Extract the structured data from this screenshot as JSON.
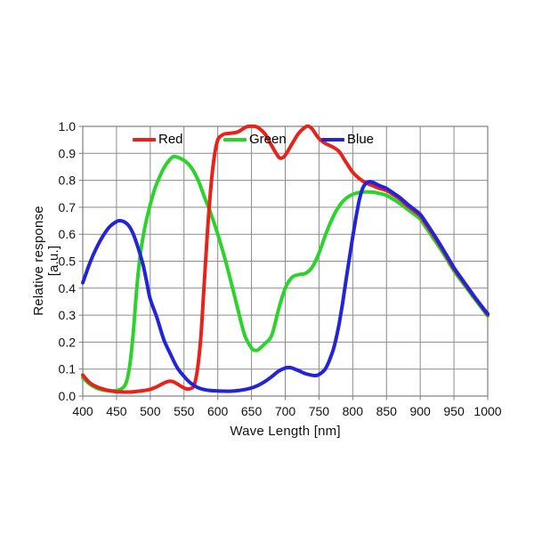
{
  "chart_data": {
    "type": "line",
    "title": "",
    "xlabel": "Wave Length [nm]",
    "ylabel": "Relative response [a.u.]",
    "xlim": [
      400,
      1000
    ],
    "ylim": [
      0.0,
      1.0
    ],
    "x_ticks": [
      400,
      450,
      500,
      550,
      600,
      650,
      700,
      750,
      800,
      850,
      900,
      950,
      1000
    ],
    "x_tick_labels": [
      "400",
      "450",
      "500",
      "550",
      "600",
      "650",
      "700",
      "750",
      "800",
      "850",
      "900",
      "950",
      "1000"
    ],
    "y_ticks": [
      0.0,
      0.1,
      0.2,
      0.3,
      0.4,
      0.5,
      0.6,
      0.7,
      0.8,
      0.9,
      1.0
    ],
    "y_tick_labels": [
      "0.0",
      "0.1",
      "0.2",
      "0.3",
      "0.4",
      "0.5",
      "0.6",
      "0.7",
      "0.8",
      "0.9",
      "1.0"
    ],
    "grid": true,
    "legend_position": "top-inside",
    "colors": {
      "grid": "#8c8c8c",
      "frame": "#7f7f7f",
      "text": "#111111"
    },
    "series": [
      {
        "name": "Red",
        "color": "#e8211a",
        "points": [
          [
            400,
            0.078
          ],
          [
            410,
            0.05
          ],
          [
            420,
            0.035
          ],
          [
            430,
            0.026
          ],
          [
            440,
            0.02
          ],
          [
            450,
            0.016
          ],
          [
            460,
            0.015
          ],
          [
            470,
            0.015
          ],
          [
            480,
            0.017
          ],
          [
            490,
            0.02
          ],
          [
            500,
            0.025
          ],
          [
            510,
            0.035
          ],
          [
            520,
            0.048
          ],
          [
            525,
            0.053
          ],
          [
            530,
            0.055
          ],
          [
            535,
            0.052
          ],
          [
            540,
            0.045
          ],
          [
            550,
            0.03
          ],
          [
            555,
            0.026
          ],
          [
            560,
            0.028
          ],
          [
            565,
            0.04
          ],
          [
            570,
            0.1
          ],
          [
            575,
            0.22
          ],
          [
            580,
            0.42
          ],
          [
            585,
            0.62
          ],
          [
            590,
            0.78
          ],
          [
            595,
            0.89
          ],
          [
            600,
            0.95
          ],
          [
            605,
            0.965
          ],
          [
            610,
            0.972
          ],
          [
            620,
            0.975
          ],
          [
            630,
            0.98
          ],
          [
            640,
            0.995
          ],
          [
            645,
            1.0
          ],
          [
            655,
            1.0
          ],
          [
            660,
            0.995
          ],
          [
            670,
            0.972
          ],
          [
            680,
            0.928
          ],
          [
            690,
            0.887
          ],
          [
            695,
            0.883
          ],
          [
            700,
            0.893
          ],
          [
            710,
            0.935
          ],
          [
            720,
            0.975
          ],
          [
            730,
            0.998
          ],
          [
            735,
            1.0
          ],
          [
            740,
            0.99
          ],
          [
            750,
            0.955
          ],
          [
            760,
            0.936
          ],
          [
            770,
            0.924
          ],
          [
            780,
            0.906
          ],
          [
            790,
            0.867
          ],
          [
            800,
            0.83
          ],
          [
            810,
            0.806
          ],
          [
            820,
            0.79
          ],
          [
            830,
            0.78
          ],
          [
            840,
            0.77
          ],
          [
            850,
            0.762
          ],
          [
            860,
            0.747
          ],
          [
            870,
            0.73
          ],
          [
            880,
            0.708
          ],
          [
            890,
            0.688
          ],
          [
            900,
            0.668
          ],
          [
            910,
            0.632
          ],
          [
            920,
            0.594
          ],
          [
            930,
            0.556
          ],
          [
            940,
            0.514
          ],
          [
            950,
            0.472
          ],
          [
            960,
            0.437
          ],
          [
            970,
            0.402
          ],
          [
            980,
            0.368
          ],
          [
            990,
            0.335
          ],
          [
            1000,
            0.302
          ]
        ]
      },
      {
        "name": "Green",
        "color": "#2bd32b",
        "points": [
          [
            400,
            0.068
          ],
          [
            410,
            0.045
          ],
          [
            420,
            0.03
          ],
          [
            430,
            0.022
          ],
          [
            440,
            0.019
          ],
          [
            450,
            0.02
          ],
          [
            455,
            0.024
          ],
          [
            460,
            0.032
          ],
          [
            465,
            0.055
          ],
          [
            470,
            0.12
          ],
          [
            475,
            0.24
          ],
          [
            480,
            0.4
          ],
          [
            485,
            0.52
          ],
          [
            490,
            0.6
          ],
          [
            495,
            0.66
          ],
          [
            500,
            0.71
          ],
          [
            505,
            0.755
          ],
          [
            510,
            0.79
          ],
          [
            520,
            0.845
          ],
          [
            530,
            0.88
          ],
          [
            535,
            0.888
          ],
          [
            540,
            0.886
          ],
          [
            550,
            0.874
          ],
          [
            560,
            0.85
          ],
          [
            570,
            0.806
          ],
          [
            580,
            0.74
          ],
          [
            590,
            0.675
          ],
          [
            600,
            0.6
          ],
          [
            610,
            0.515
          ],
          [
            620,
            0.42
          ],
          [
            630,
            0.32
          ],
          [
            640,
            0.225
          ],
          [
            650,
            0.178
          ],
          [
            655,
            0.17
          ],
          [
            660,
            0.172
          ],
          [
            670,
            0.195
          ],
          [
            680,
            0.225
          ],
          [
            690,
            0.32
          ],
          [
            700,
            0.4
          ],
          [
            710,
            0.44
          ],
          [
            720,
            0.45
          ],
          [
            730,
            0.455
          ],
          [
            740,
            0.478
          ],
          [
            750,
            0.53
          ],
          [
            760,
            0.6
          ],
          [
            770,
            0.66
          ],
          [
            780,
            0.705
          ],
          [
            790,
            0.733
          ],
          [
            800,
            0.748
          ],
          [
            810,
            0.755
          ],
          [
            820,
            0.757
          ],
          [
            830,
            0.756
          ],
          [
            840,
            0.751
          ],
          [
            850,
            0.744
          ],
          [
            860,
            0.73
          ],
          [
            870,
            0.714
          ],
          [
            880,
            0.695
          ],
          [
            890,
            0.676
          ],
          [
            900,
            0.656
          ],
          [
            910,
            0.62
          ],
          [
            920,
            0.583
          ],
          [
            930,
            0.546
          ],
          [
            940,
            0.505
          ],
          [
            950,
            0.464
          ],
          [
            960,
            0.43
          ],
          [
            970,
            0.396
          ],
          [
            980,
            0.363
          ],
          [
            990,
            0.33
          ],
          [
            1000,
            0.297
          ]
        ]
      },
      {
        "name": "Blue",
        "color": "#2323d9",
        "points": [
          [
            400,
            0.42
          ],
          [
            410,
            0.49
          ],
          [
            420,
            0.548
          ],
          [
            430,
            0.594
          ],
          [
            440,
            0.628
          ],
          [
            450,
            0.647
          ],
          [
            455,
            0.65
          ],
          [
            460,
            0.648
          ],
          [
            465,
            0.64
          ],
          [
            470,
            0.625
          ],
          [
            475,
            0.6
          ],
          [
            480,
            0.565
          ],
          [
            485,
            0.525
          ],
          [
            490,
            0.48
          ],
          [
            495,
            0.42
          ],
          [
            500,
            0.36
          ],
          [
            510,
            0.29
          ],
          [
            520,
            0.21
          ],
          [
            530,
            0.155
          ],
          [
            540,
            0.105
          ],
          [
            550,
            0.073
          ],
          [
            560,
            0.048
          ],
          [
            570,
            0.032
          ],
          [
            580,
            0.024
          ],
          [
            590,
            0.02
          ],
          [
            600,
            0.019
          ],
          [
            610,
            0.018
          ],
          [
            620,
            0.018
          ],
          [
            630,
            0.02
          ],
          [
            640,
            0.024
          ],
          [
            650,
            0.03
          ],
          [
            660,
            0.04
          ],
          [
            670,
            0.054
          ],
          [
            680,
            0.072
          ],
          [
            690,
            0.092
          ],
          [
            700,
            0.104
          ],
          [
            705,
            0.106
          ],
          [
            710,
            0.104
          ],
          [
            720,
            0.094
          ],
          [
            730,
            0.083
          ],
          [
            740,
            0.077
          ],
          [
            745,
            0.076
          ],
          [
            750,
            0.08
          ],
          [
            760,
            0.103
          ],
          [
            770,
            0.163
          ],
          [
            775,
            0.21
          ],
          [
            780,
            0.27
          ],
          [
            785,
            0.345
          ],
          [
            790,
            0.43
          ],
          [
            795,
            0.51
          ],
          [
            800,
            0.59
          ],
          [
            805,
            0.665
          ],
          [
            810,
            0.73
          ],
          [
            815,
            0.772
          ],
          [
            820,
            0.79
          ],
          [
            825,
            0.795
          ],
          [
            830,
            0.792
          ],
          [
            840,
            0.78
          ],
          [
            850,
            0.77
          ],
          [
            860,
            0.753
          ],
          [
            870,
            0.736
          ],
          [
            880,
            0.714
          ],
          [
            890,
            0.694
          ],
          [
            900,
            0.674
          ],
          [
            910,
            0.638
          ],
          [
            920,
            0.6
          ],
          [
            930,
            0.56
          ],
          [
            940,
            0.518
          ],
          [
            950,
            0.476
          ],
          [
            960,
            0.44
          ],
          [
            970,
            0.405
          ],
          [
            980,
            0.37
          ],
          [
            990,
            0.337
          ],
          [
            1000,
            0.305
          ]
        ]
      }
    ]
  }
}
